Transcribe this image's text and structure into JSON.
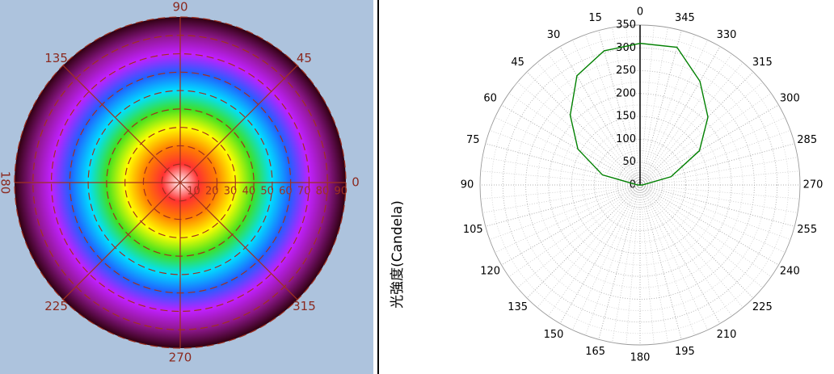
{
  "chart_data": [
    {
      "type": "polar_heatmap",
      "angle_ticks": [
        0,
        45,
        90,
        135,
        180,
        225,
        270,
        315
      ],
      "rlim": [
        0,
        90
      ],
      "rticks": [
        10,
        20,
        30,
        40,
        50,
        60,
        70,
        80,
        90
      ],
      "colormap": [
        "#ffffff",
        "#ff3030",
        "#ff8000",
        "#ffff00",
        "#40e020",
        "#00e0ff",
        "#2060ff",
        "#c020ff",
        "#901890",
        "#300010"
      ],
      "grid_color": "#a03020"
    },
    {
      "type": "polar_line",
      "ylabel": "光強度(Candela)",
      "angle_ticks": [
        0,
        15,
        30,
        45,
        60,
        75,
        90,
        105,
        120,
        135,
        150,
        165,
        180,
        195,
        210,
        225,
        240,
        255,
        270,
        285,
        300,
        315,
        330,
        345
      ],
      "rlim": [
        0,
        350
      ],
      "rticks": [
        0,
        50,
        100,
        150,
        200,
        250,
        300,
        350
      ],
      "grid": true,
      "x": [
        0,
        15,
        30,
        45,
        60,
        75,
        90,
        105,
        120,
        135,
        150,
        165,
        180,
        195,
        210,
        225,
        240,
        255,
        270,
        285,
        300,
        315,
        330,
        345
      ],
      "series": [
        {
          "color": "#008000",
          "values": [
            310,
            304,
            276,
            216,
            157,
            85,
            5,
            0,
            0,
            0,
            0,
            0,
            0,
            0,
            0,
            0,
            0,
            0,
            5,
            70,
            150,
            210,
            262,
            312
          ]
        }
      ]
    }
  ]
}
